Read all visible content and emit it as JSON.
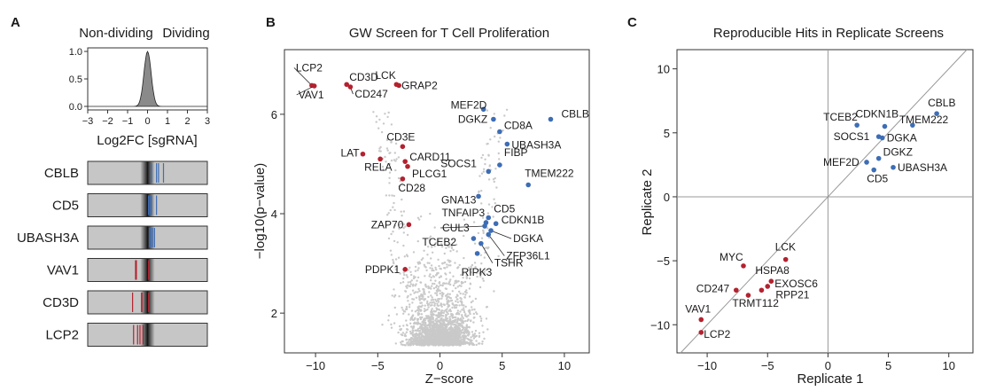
{
  "panel_letters": [
    "A",
    "B",
    "C"
  ],
  "colors": {
    "red": "#b3222f",
    "blue": "#3d6db5",
    "grey": "#c9c9c9",
    "density": "#8a8a8a"
  },
  "chart_data": [
    {
      "type": "area",
      "panel": "A",
      "header_labels": [
        "Non-dividing",
        "Dividing"
      ],
      "xlabel": "Log2FC [sgRNA]",
      "ylabel": "",
      "xlim": [
        -3,
        3
      ],
      "ylim": [
        0,
        1.0
      ],
      "x_ticks": [
        "−3",
        "−2",
        "−1",
        "0",
        "1",
        "2",
        "3"
      ],
      "y_ticks": [
        "0.0",
        "0.5",
        "1.0"
      ],
      "density": {
        "center": 0,
        "sd": 0.18
      },
      "genes": [
        {
          "name": "CBLB",
          "color": "blue",
          "sgrna_log2fc": [
            0.2,
            0.45,
            0.55,
            0.8
          ]
        },
        {
          "name": "CD5",
          "color": "blue",
          "sgrna_log2fc": [
            0.05,
            0.12,
            0.2,
            0.45
          ]
        },
        {
          "name": "UBASH3A",
          "color": "blue",
          "sgrna_log2fc": [
            0.1,
            0.15,
            0.25,
            0.35
          ]
        },
        {
          "name": "VAV1",
          "color": "red",
          "sgrna_log2fc": [
            -0.6,
            -0.58,
            -0.56,
            0.05
          ]
        },
        {
          "name": "CD3D",
          "color": "red",
          "sgrna_log2fc": [
            -0.75,
            -0.3,
            -0.28,
            0.05
          ]
        },
        {
          "name": "LCP2",
          "color": "red",
          "sgrna_log2fc": [
            -0.7,
            -0.5,
            -0.38,
            -0.22
          ]
        }
      ]
    },
    {
      "type": "scatter",
      "panel": "B",
      "title": "GW Screen for T Cell Proliferation",
      "xlabel": "Z−score",
      "ylabel": "−log10(p−value)",
      "xlim": [
        -12.5,
        12
      ],
      "ylim": [
        1.2,
        7.3
      ],
      "x_ticks": [
        -10,
        -5,
        0,
        5,
        10
      ],
      "y_ticks": [
        2,
        4,
        6
      ],
      "background_points": "gray",
      "points": [
        {
          "gene": "LCP2",
          "x": -10.3,
          "y": 6.58,
          "color": "red"
        },
        {
          "gene": "VAV1",
          "x": -10.1,
          "y": 6.57,
          "color": "red"
        },
        {
          "gene": "CD3D",
          "x": -7.5,
          "y": 6.6,
          "color": "red"
        },
        {
          "gene": "CD247",
          "x": -7.2,
          "y": 6.55,
          "color": "red"
        },
        {
          "gene": "LCK",
          "x": -3.5,
          "y": 6.6,
          "color": "red"
        },
        {
          "gene": "GRAP2",
          "x": -3.3,
          "y": 6.58,
          "color": "red"
        },
        {
          "gene": "CD3E",
          "x": -3.0,
          "y": 5.35,
          "color": "red"
        },
        {
          "gene": "LAT",
          "x": -6.2,
          "y": 5.2,
          "color": "red"
        },
        {
          "gene": "RELA",
          "x": -4.8,
          "y": 5.1,
          "color": "red"
        },
        {
          "gene": "CARD11",
          "x": -2.8,
          "y": 5.05,
          "color": "red"
        },
        {
          "gene": "PLCG1",
          "x": -2.6,
          "y": 4.95,
          "color": "red"
        },
        {
          "gene": "CD28",
          "x": -3.0,
          "y": 4.7,
          "color": "red"
        },
        {
          "gene": "ZAP70",
          "x": -2.5,
          "y": 3.78,
          "color": "red"
        },
        {
          "gene": "PDPK1",
          "x": -2.8,
          "y": 2.88,
          "color": "red"
        },
        {
          "gene": "MEF2D",
          "x": 3.5,
          "y": 6.1,
          "color": "blue"
        },
        {
          "gene": "DGKZ",
          "x": 4.3,
          "y": 5.9,
          "color": "blue"
        },
        {
          "gene": "CD8A",
          "x": 4.8,
          "y": 5.65,
          "color": "blue"
        },
        {
          "gene": "CBLB",
          "x": 8.9,
          "y": 5.9,
          "color": "blue"
        },
        {
          "gene": "UBASH3A",
          "x": 5.4,
          "y": 5.4,
          "color": "blue"
        },
        {
          "gene": "FIBP",
          "x": 4.8,
          "y": 4.98,
          "color": "blue"
        },
        {
          "gene": "SOCS1",
          "x": 3.9,
          "y": 4.85,
          "color": "blue"
        },
        {
          "gene": "TMEM222",
          "x": 7.1,
          "y": 4.58,
          "color": "blue"
        },
        {
          "gene": "GNA13",
          "x": 3.1,
          "y": 4.35,
          "color": "blue"
        },
        {
          "gene": "CD5",
          "x": 3.9,
          "y": 3.92,
          "color": "blue"
        },
        {
          "gene": "TNFAIP3",
          "x": 3.7,
          "y": 3.82,
          "color": "blue"
        },
        {
          "gene": "CUL3",
          "x": 3.6,
          "y": 3.75,
          "color": "blue"
        },
        {
          "gene": "CDKN1B",
          "x": 4.5,
          "y": 3.8,
          "color": "blue"
        },
        {
          "gene": "DGKA",
          "x": 4.1,
          "y": 3.66,
          "color": "blue"
        },
        {
          "gene": "TCEB2",
          "x": 2.7,
          "y": 3.5,
          "color": "blue"
        },
        {
          "gene": "ZFP36L1",
          "x": 3.9,
          "y": 3.58,
          "color": "blue"
        },
        {
          "gene": "RIPK3",
          "x": 3.0,
          "y": 3.2,
          "color": "blue"
        },
        {
          "gene": "TSHR",
          "x": 3.3,
          "y": 3.4,
          "color": "blue"
        }
      ]
    },
    {
      "type": "scatter",
      "panel": "C",
      "title": "Reproducible Hits in Replicate Screens",
      "xlabel": "Replicate 1",
      "ylabel": "Replicate 2",
      "xlim": [
        -12.5,
        12
      ],
      "ylim": [
        -12.2,
        11.5
      ],
      "x_ticks": [
        -10,
        -5,
        0,
        5,
        10
      ],
      "y_ticks": [
        -10,
        -5,
        0,
        5,
        10
      ],
      "reference_lines": [
        "x=0",
        "y=0",
        "y=x"
      ],
      "points": [
        {
          "gene": "CBLB",
          "x": 9.0,
          "y": 6.5,
          "color": "blue"
        },
        {
          "gene": "TMEM222",
          "x": 7.0,
          "y": 5.6,
          "color": "blue"
        },
        {
          "gene": "CDKN1B",
          "x": 4.7,
          "y": 5.5,
          "color": "blue"
        },
        {
          "gene": "TCEB2",
          "x": 2.4,
          "y": 5.6,
          "color": "blue"
        },
        {
          "gene": "SOCS1",
          "x": 4.2,
          "y": 4.7,
          "color": "blue"
        },
        {
          "gene": "DGKA",
          "x": 4.5,
          "y": 4.6,
          "color": "blue"
        },
        {
          "gene": "DGKZ",
          "x": 4.2,
          "y": 3.0,
          "color": "blue"
        },
        {
          "gene": "MEF2D",
          "x": 3.2,
          "y": 2.7,
          "color": "blue"
        },
        {
          "gene": "CD5",
          "x": 3.8,
          "y": 2.1,
          "color": "blue"
        },
        {
          "gene": "UBASH3A",
          "x": 5.4,
          "y": 2.3,
          "color": "blue"
        },
        {
          "gene": "LCK",
          "x": -3.5,
          "y": -4.9,
          "color": "red"
        },
        {
          "gene": "MYC",
          "x": -7.0,
          "y": -5.4,
          "color": "red"
        },
        {
          "gene": "HSPA8",
          "x": -4.7,
          "y": -6.6,
          "color": "red"
        },
        {
          "gene": "EXOSC6",
          "x": -5.0,
          "y": -7.0,
          "color": "red"
        },
        {
          "gene": "RPP21",
          "x": -5.5,
          "y": -7.3,
          "color": "red"
        },
        {
          "gene": "CD247",
          "x": -7.6,
          "y": -7.3,
          "color": "red"
        },
        {
          "gene": "TRMT112",
          "x": -6.6,
          "y": -7.7,
          "color": "red"
        },
        {
          "gene": "VAV1",
          "x": -10.5,
          "y": -9.6,
          "color": "red"
        },
        {
          "gene": "LCP2",
          "x": -10.5,
          "y": -10.6,
          "color": "red"
        }
      ]
    }
  ]
}
